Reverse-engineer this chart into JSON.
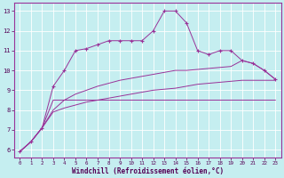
{
  "title": "",
  "xlabel": "Windchill (Refroidissement éolien,°C)",
  "background_color": "#c5eef0",
  "line_color": "#993399",
  "x_ticks": [
    0,
    1,
    2,
    3,
    4,
    5,
    6,
    7,
    8,
    9,
    10,
    11,
    12,
    13,
    14,
    15,
    16,
    17,
    18,
    19,
    20,
    21,
    22,
    23
  ],
  "y_ticks": [
    6,
    7,
    8,
    9,
    10,
    11,
    12,
    13
  ],
  "xlim": [
    -0.5,
    23.5
  ],
  "ylim": [
    5.6,
    13.4
  ],
  "series": [
    {
      "x": [
        0,
        1,
        2,
        3,
        4,
        5,
        6,
        7,
        8,
        9,
        10,
        11,
        12,
        13,
        14,
        15,
        16,
        17,
        18,
        19,
        20,
        21,
        22,
        23
      ],
      "y": [
        5.9,
        6.4,
        7.1,
        8.5,
        8.5,
        8.5,
        8.5,
        8.5,
        8.5,
        8.5,
        8.5,
        8.5,
        8.5,
        8.5,
        8.5,
        8.5,
        8.5,
        8.5,
        8.5,
        8.5,
        8.5,
        8.5,
        8.5,
        8.5
      ],
      "marker": false
    },
    {
      "x": [
        0,
        1,
        2,
        3,
        4,
        5,
        6,
        7,
        8,
        9,
        10,
        11,
        12,
        13,
        14,
        15,
        16,
        17,
        18,
        19,
        20,
        21,
        22,
        23
      ],
      "y": [
        5.9,
        6.4,
        7.1,
        7.9,
        8.1,
        8.25,
        8.4,
        8.5,
        8.6,
        8.7,
        8.8,
        8.9,
        9.0,
        9.05,
        9.1,
        9.2,
        9.3,
        9.35,
        9.4,
        9.45,
        9.5,
        9.5,
        9.5,
        9.5
      ],
      "marker": false
    },
    {
      "x": [
        0,
        1,
        2,
        3,
        4,
        5,
        6,
        7,
        8,
        9,
        10,
        11,
        12,
        13,
        14,
        15,
        16,
        17,
        18,
        19,
        20,
        21,
        22,
        23
      ],
      "y": [
        5.9,
        6.4,
        7.1,
        8.0,
        8.5,
        8.8,
        9.0,
        9.2,
        9.35,
        9.5,
        9.6,
        9.7,
        9.8,
        9.9,
        10.0,
        10.0,
        10.05,
        10.1,
        10.15,
        10.2,
        10.5,
        10.35,
        10.0,
        9.55
      ],
      "marker": false
    },
    {
      "x": [
        0,
        1,
        2,
        3,
        4,
        5,
        6,
        7,
        8,
        9,
        10,
        11,
        12,
        13,
        14,
        15,
        16,
        17,
        18,
        19,
        20,
        21,
        22,
        23
      ],
      "y": [
        5.9,
        6.4,
        7.1,
        9.2,
        10.0,
        11.0,
        11.1,
        11.3,
        11.5,
        11.5,
        11.5,
        11.5,
        12.0,
        13.0,
        13.0,
        12.4,
        11.0,
        10.8,
        11.0,
        11.0,
        10.5,
        10.35,
        10.0,
        9.55
      ],
      "marker": true
    }
  ]
}
